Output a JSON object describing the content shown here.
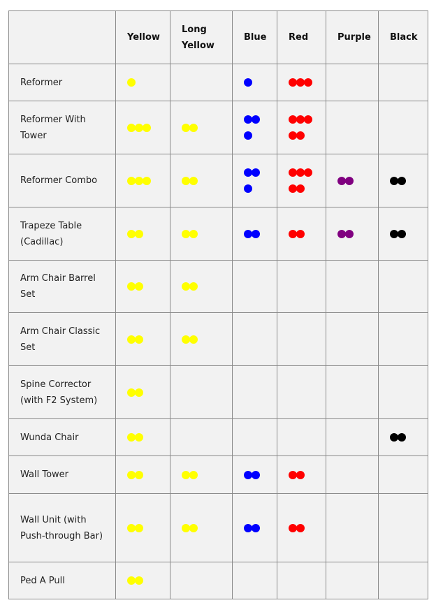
{
  "columns": [
    "",
    "Yellow",
    "Long Yellow",
    "Blue",
    "Red",
    "Purple",
    "Black"
  ],
  "colors": {
    "Yellow": "#ffff00",
    "Long Yellow": "#ffff00",
    "Blue": "#0000ff",
    "Red": "#ff0000",
    "Purple": "#800080",
    "Black": "#000000"
  },
  "rows": [
    {
      "name": "Reformer",
      "counts": [
        1,
        0,
        1,
        3,
        0,
        0
      ]
    },
    {
      "name": "Reformer With Tower",
      "counts": [
        3,
        2,
        3,
        5,
        0,
        0
      ]
    },
    {
      "name": "Reformer Combo",
      "counts": [
        3,
        2,
        3,
        5,
        2,
        2
      ]
    },
    {
      "name": "Trapeze Table (Cadillac)",
      "counts": [
        2,
        2,
        2,
        2,
        2,
        2
      ]
    },
    {
      "name": "Arm Chair Barrel Set",
      "counts": [
        2,
        2,
        0,
        0,
        0,
        0
      ]
    },
    {
      "name": "Arm Chair Classic Set",
      "counts": [
        2,
        2,
        0,
        0,
        0,
        0
      ]
    },
    {
      "name": "Spine Corrector (with F2 System)",
      "counts": [
        2,
        0,
        0,
        0,
        0,
        0
      ]
    },
    {
      "name": "Wunda Chair",
      "counts": [
        2,
        0,
        0,
        0,
        0,
        2
      ]
    },
    {
      "name": "Wall Tower",
      "counts": [
        2,
        2,
        2,
        2,
        0,
        0
      ]
    },
    {
      "name": "Wall Unit (with Push-through Bar)",
      "counts": [
        2,
        2,
        2,
        2,
        0,
        0
      ]
    },
    {
      "name": "Ped A Pull",
      "counts": [
        2,
        0,
        0,
        0,
        0,
        0
      ]
    }
  ]
}
